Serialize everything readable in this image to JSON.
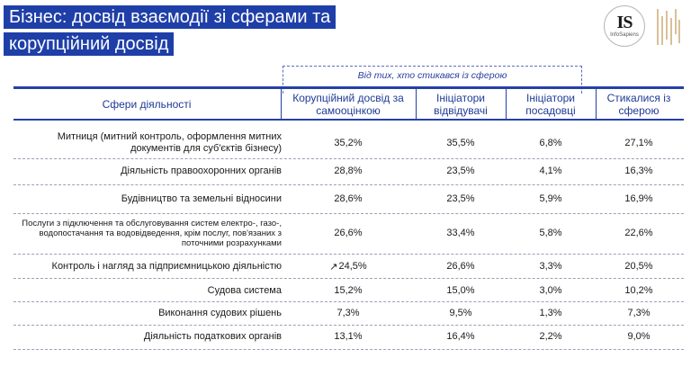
{
  "header": {
    "title_line1": "Бізнес: досвід взаємодії зі сферами та",
    "title_line2": "корупційний досвід"
  },
  "logo": {
    "is_text": "IS",
    "is_sub": "InfoSapiens"
  },
  "table": {
    "group_caption": "Від тих, хто стикався із сферою",
    "columns": [
      "Сфери діяльності",
      "Корупційний досвід за самооцінкою",
      "Ініціатори відвідувачі",
      "Ініціатори посадовці",
      "Стикалися із сферою"
    ],
    "rows": [
      {
        "label": "Митниця (митний контроль, оформлення митних документів для суб'єктів бізнесу)",
        "v1": "35,2%",
        "v2": "35,5%",
        "v3": "6,8%",
        "v4": "27,1%"
      },
      {
        "label": "Діяльність правоохоронних органів",
        "v1": "28,8%",
        "v2": "23,5%",
        "v3": "4,1%",
        "v4": "16,3%"
      },
      {
        "label": "Будівництво та земельні відносини",
        "v1": "28,6%",
        "v2": "23,5%",
        "v3": "5,9%",
        "v4": "16,9%"
      },
      {
        "label": "Послуги з підключення та обслуговування систем електро-, газо-, водопостачання та водовідведення, крім послуг, пов'язаних з поточними розрахунками",
        "v1": "26,6%",
        "v2": "33,4%",
        "v3": "5,8%",
        "v4": "22,6%"
      },
      {
        "label": "Контроль і нагляд за підприємницькою діяльністю",
        "v1": "24,5%",
        "v2": "26,6%",
        "v3": "3,3%",
        "v4": "20,5%",
        "trend": "up-arrow-icon"
      },
      {
        "label": "Судова система",
        "v1": "15,2%",
        "v2": "15,0%",
        "v3": "3,0%",
        "v4": "10,2%"
      },
      {
        "label": "Виконання судових рішень",
        "v1": "7,3%",
        "v2": "9,5%",
        "v3": "1,3%",
        "v4": "7,3%"
      },
      {
        "label": "Діяльність податкових органів",
        "v1": "13,1%",
        "v2": "16,4%",
        "v3": "2,2%",
        "v4": "9,0%"
      }
    ]
  },
  "colors": {
    "accent": "#1f3fa8",
    "header_text": "#1f3a96"
  }
}
